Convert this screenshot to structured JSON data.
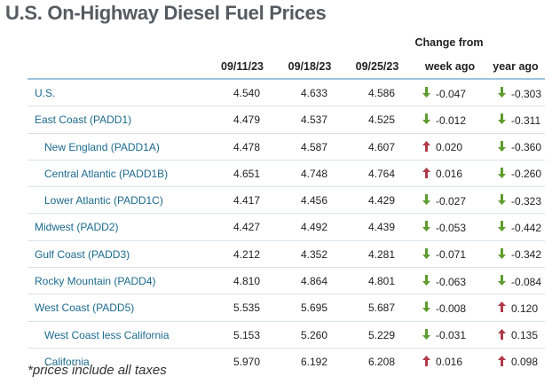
{
  "title": "U.S. On-Highway Diesel Fuel Prices",
  "change_from_label": "Change from",
  "columns": {
    "d1": "09/11/23",
    "d2": "09/18/23",
    "d3": "09/25/23",
    "week": "week ago",
    "year": "year ago"
  },
  "colors": {
    "up": "#b03a48",
    "down": "#5d9c2f",
    "region_text": "#1b6a8e",
    "header_rule": "#9ec6de"
  },
  "rows": [
    {
      "region": "U.S.",
      "sub": false,
      "d1": "4.540",
      "d2": "4.633",
      "d3": "4.586",
      "week": "-0.047",
      "week_dir": "down",
      "year": "-0.303",
      "year_dir": "down"
    },
    {
      "region": "East Coast (PADD1)",
      "sub": false,
      "d1": "4.479",
      "d2": "4.537",
      "d3": "4.525",
      "week": "-0.012",
      "week_dir": "down",
      "year": "-0.311",
      "year_dir": "down"
    },
    {
      "region": "New England (PADD1A)",
      "sub": true,
      "d1": "4.478",
      "d2": "4.587",
      "d3": "4.607",
      "week": "0.020",
      "week_dir": "up",
      "year": "-0.360",
      "year_dir": "down"
    },
    {
      "region": "Central Atlantic (PADD1B)",
      "sub": true,
      "d1": "4.651",
      "d2": "4.748",
      "d3": "4.764",
      "week": "0.016",
      "week_dir": "up",
      "year": "-0.260",
      "year_dir": "down"
    },
    {
      "region": "Lower Atlantic (PADD1C)",
      "sub": true,
      "d1": "4.417",
      "d2": "4.456",
      "d3": "4.429",
      "week": "-0.027",
      "week_dir": "down",
      "year": "-0.323",
      "year_dir": "down"
    },
    {
      "region": "Midwest (PADD2)",
      "sub": false,
      "d1": "4.427",
      "d2": "4.492",
      "d3": "4.439",
      "week": "-0.053",
      "week_dir": "down",
      "year": "-0.442",
      "year_dir": "down"
    },
    {
      "region": "Gulf Coast (PADD3)",
      "sub": false,
      "d1": "4.212",
      "d2": "4.352",
      "d3": "4.281",
      "week": "-0.071",
      "week_dir": "down",
      "year": "-0.342",
      "year_dir": "down"
    },
    {
      "region": "Rocky Mountain (PADD4)",
      "sub": false,
      "d1": "4.810",
      "d2": "4.864",
      "d3": "4.801",
      "week": "-0.063",
      "week_dir": "down",
      "year": "-0.084",
      "year_dir": "down"
    },
    {
      "region": "West Coast (PADD5)",
      "sub": false,
      "d1": "5.535",
      "d2": "5.695",
      "d3": "5.687",
      "week": "-0.008",
      "week_dir": "down",
      "year": "0.120",
      "year_dir": "up"
    },
    {
      "region": "West Coast less California",
      "sub": true,
      "d1": "5.153",
      "d2": "5.260",
      "d3": "5.229",
      "week": "-0.031",
      "week_dir": "down",
      "year": "0.135",
      "year_dir": "up"
    },
    {
      "region": "California",
      "sub": true,
      "d1": "5.970",
      "d2": "6.192",
      "d3": "6.208",
      "week": "0.016",
      "week_dir": "up",
      "year": "0.098",
      "year_dir": "up"
    }
  ],
  "footnote": "*prices include all taxes"
}
